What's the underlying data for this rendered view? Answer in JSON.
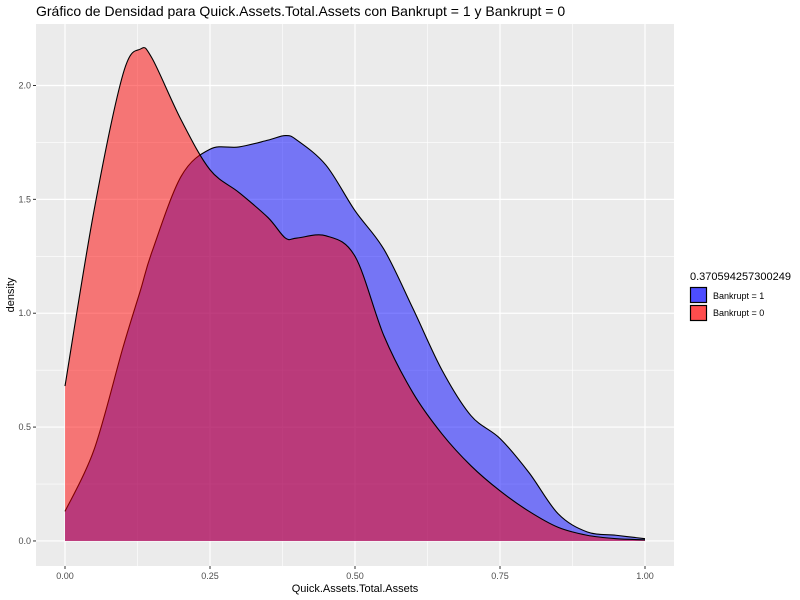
{
  "chart_data": {
    "type": "area",
    "title": "Gráfico de Densidad para Quick.Assets.Total.Assets con Bankrupt = 1 y Bankrupt = 0",
    "xlabel": "Quick.Assets.Total.Assets",
    "ylabel": "density",
    "xlim": [
      -0.05,
      1.05
    ],
    "ylim": [
      -0.11,
      2.27
    ],
    "x_ticks": [
      0.0,
      0.25,
      0.5,
      0.75,
      1.0
    ],
    "x_tick_labels": [
      "0.00",
      "0.25",
      "0.50",
      "0.75",
      "1.00"
    ],
    "y_ticks": [
      0.0,
      0.5,
      1.0,
      1.5,
      2.0
    ],
    "y_tick_labels": [
      "0.0",
      "0.5",
      "1.0",
      "1.5",
      "2.0"
    ],
    "grid": true,
    "legend": {
      "title": "0.370594257300249",
      "position": "right",
      "entries": [
        "Bankrupt = 1",
        "Bankrupt = 0"
      ]
    },
    "x": [
      0.0,
      0.05,
      0.1,
      0.13,
      0.15,
      0.2,
      0.25,
      0.3,
      0.35,
      0.38,
      0.4,
      0.45,
      0.5,
      0.55,
      0.6,
      0.65,
      0.7,
      0.75,
      0.8,
      0.85,
      0.9,
      0.95,
      1.0
    ],
    "series": [
      {
        "name": "Bankrupt = 1",
        "color": "#0000FF",
        "values": [
          0.13,
          0.4,
          0.85,
          1.1,
          1.27,
          1.6,
          1.72,
          1.73,
          1.76,
          1.78,
          1.76,
          1.65,
          1.45,
          1.28,
          1.02,
          0.75,
          0.55,
          0.45,
          0.3,
          0.12,
          0.04,
          0.025,
          0.01
        ]
      },
      {
        "name": "Bankrupt = 0",
        "color": "#FF0000",
        "values": [
          0.68,
          1.45,
          2.05,
          2.16,
          2.12,
          1.85,
          1.63,
          1.53,
          1.42,
          1.33,
          1.33,
          1.34,
          1.25,
          0.9,
          0.65,
          0.47,
          0.33,
          0.22,
          0.13,
          0.06,
          0.025,
          0.01,
          0.005
        ]
      }
    ]
  }
}
